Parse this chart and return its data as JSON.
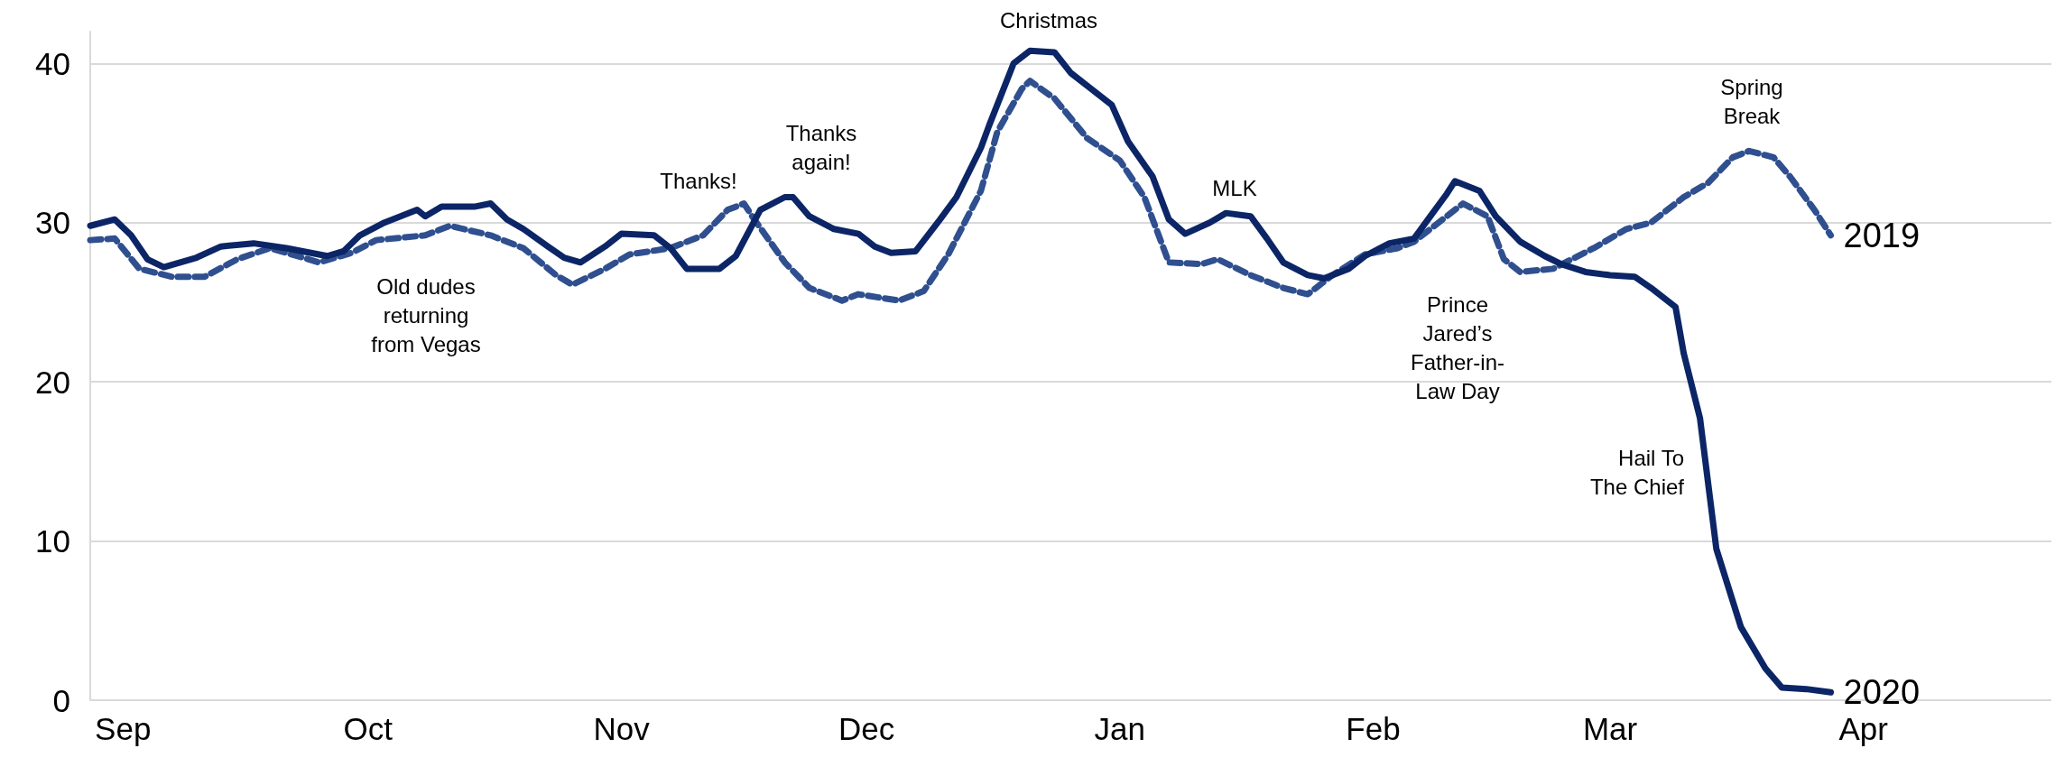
{
  "chart_data": {
    "type": "line",
    "xlim": [
      "2019-08-28",
      "2020-04-24"
    ],
    "xticks": [
      {
        "value": "2019-09-01",
        "label": "Sep"
      },
      {
        "value": "2019-10-01",
        "label": "Oct"
      },
      {
        "value": "2019-11-01",
        "label": "Nov"
      },
      {
        "value": "2019-12-01",
        "label": "Dec"
      },
      {
        "value": "2020-01-01",
        "label": "Jan"
      },
      {
        "value": "2020-02-01",
        "label": "Feb"
      },
      {
        "value": "2020-03-01",
        "label": "Mar"
      },
      {
        "value": "2020-04-01",
        "label": "Apr"
      }
    ],
    "ylim": [
      0,
      42
    ],
    "yticks": [
      0,
      10,
      20,
      30,
      40
    ],
    "grid": "y",
    "legend": false,
    "marker": "none",
    "series": [
      {
        "name": "2019",
        "color": "#2f4f8f",
        "line_style": "dashed",
        "x": [
          "2019-08-28",
          "2019-08-31",
          "2019-09-03",
          "2019-09-07",
          "2019-09-11",
          "2019-09-15",
          "2019-09-19",
          "2019-09-25",
          "2019-09-29",
          "2019-10-02",
          "2019-10-08",
          "2019-10-11",
          "2019-10-16",
          "2019-10-20",
          "2019-10-24",
          "2019-10-26",
          "2019-10-30",
          "2019-11-02",
          "2019-11-07",
          "2019-11-11",
          "2019-11-14",
          "2019-11-16",
          "2019-11-17",
          "2019-11-21",
          "2019-11-24",
          "2019-11-28",
          "2019-11-30",
          "2019-12-05",
          "2019-12-08",
          "2019-12-11",
          "2019-12-15",
          "2019-12-17",
          "2019-12-20",
          "2019-12-21",
          "2019-12-24",
          "2019-12-28",
          "2020-01-01",
          "2020-01-04",
          "2020-01-07",
          "2020-01-11",
          "2020-01-13",
          "2020-01-17",
          "2020-01-21",
          "2020-01-24",
          "2020-01-27",
          "2020-01-31",
          "2020-02-04",
          "2020-02-06",
          "2020-02-10",
          "2020-02-12",
          "2020-02-15",
          "2020-02-17",
          "2020-02-19",
          "2020-02-23",
          "2020-02-28",
          "2020-03-03",
          "2020-03-06",
          "2020-03-10",
          "2020-03-13",
          "2020-03-16",
          "2020-03-18",
          "2020-03-21",
          "2020-03-23",
          "2020-03-26",
          "2020-03-28"
        ],
        "values": [
          28.9,
          29.0,
          27.1,
          26.6,
          26.6,
          27.7,
          28.4,
          27.5,
          28.1,
          28.9,
          29.2,
          29.8,
          29.2,
          28.4,
          26.7,
          26.1,
          27.1,
          28.0,
          28.4,
          29.2,
          30.8,
          31.2,
          30.4,
          27.5,
          25.9,
          25.1,
          25.5,
          25.1,
          25.7,
          28.0,
          32.0,
          35.7,
          38.4,
          38.9,
          37.8,
          35.3,
          33.9,
          31.6,
          27.5,
          27.4,
          27.7,
          26.7,
          25.9,
          25.5,
          26.7,
          28.0,
          28.4,
          28.8,
          30.4,
          31.2,
          30.4,
          27.7,
          26.9,
          27.1,
          28.4,
          29.6,
          30.0,
          31.6,
          32.5,
          34.1,
          34.5,
          34.1,
          32.9,
          30.8,
          29.2
        ]
      },
      {
        "name": "2020",
        "color": "#0b2566",
        "line_style": "solid",
        "x": [
          "2019-08-28",
          "2019-08-31",
          "2019-09-02",
          "2019-09-04",
          "2019-09-06",
          "2019-09-10",
          "2019-09-13",
          "2019-09-17",
          "2019-09-21",
          "2019-09-26",
          "2019-09-28",
          "2019-09-30",
          "2019-10-03",
          "2019-10-07",
          "2019-10-08",
          "2019-10-10",
          "2019-10-14",
          "2019-10-16",
          "2019-10-18",
          "2019-10-20",
          "2019-10-23",
          "2019-10-25",
          "2019-10-27",
          "2019-10-30",
          "2019-11-01",
          "2019-11-05",
          "2019-11-07",
          "2019-11-09",
          "2019-11-13",
          "2019-11-15",
          "2019-11-18",
          "2019-11-21",
          "2019-11-22",
          "2019-11-24",
          "2019-11-27",
          "2019-11-30",
          "2019-12-02",
          "2019-12-04",
          "2019-12-07",
          "2019-12-10",
          "2019-12-12",
          "2019-12-15",
          "2019-12-16",
          "2019-12-19",
          "2019-12-21",
          "2019-12-24",
          "2019-12-26",
          "2019-12-28",
          "2019-12-31",
          "2020-01-02",
          "2020-01-05",
          "2020-01-07",
          "2020-01-09",
          "2020-01-12",
          "2020-01-14",
          "2020-01-17",
          "2020-01-19",
          "2020-01-21",
          "2020-01-24",
          "2020-01-26",
          "2020-01-29",
          "2020-01-31",
          "2020-02-03",
          "2020-02-06",
          "2020-02-08",
          "2020-02-10",
          "2020-02-11",
          "2020-02-14",
          "2020-02-16",
          "2020-02-19",
          "2020-02-22",
          "2020-02-24",
          "2020-02-27",
          "2020-03-01",
          "2020-03-04",
          "2020-03-06",
          "2020-03-09",
          "2020-03-10",
          "2020-03-12",
          "2020-03-14",
          "2020-03-17",
          "2020-03-20",
          "2020-03-22",
          "2020-03-25",
          "2020-03-28"
        ],
        "values": [
          29.8,
          30.2,
          29.2,
          27.7,
          27.2,
          27.8,
          28.5,
          28.7,
          28.4,
          27.9,
          28.2,
          29.2,
          30.0,
          30.8,
          30.4,
          31.0,
          31.0,
          31.2,
          30.2,
          29.6,
          28.5,
          27.8,
          27.5,
          28.5,
          29.3,
          29.2,
          28.4,
          27.1,
          27.1,
          27.9,
          30.8,
          31.6,
          31.6,
          30.4,
          29.6,
          29.3,
          28.5,
          28.1,
          28.2,
          30.2,
          31.6,
          34.7,
          36.1,
          40.0,
          40.8,
          40.7,
          39.4,
          38.6,
          37.4,
          35.1,
          32.9,
          30.2,
          29.3,
          30.0,
          30.6,
          30.4,
          29.0,
          27.5,
          26.7,
          26.5,
          27.1,
          27.9,
          28.7,
          29.0,
          30.4,
          31.8,
          32.6,
          32.0,
          30.4,
          28.8,
          27.9,
          27.4,
          26.9,
          26.7,
          26.6,
          25.9,
          24.7,
          21.8,
          17.7,
          9.5,
          4.6,
          2.0,
          0.8,
          0.7,
          0.5
        ]
      }
    ],
    "annotations": [
      "Old dudes\nreturning\nfrom Vegas",
      "Thanks!",
      "Thanks\nagain!",
      "Christmas",
      "MLK",
      "Prince\nJared’s\nFather-in-\nLaw Day",
      "Spring\nBreak",
      "Hail To\nThe Chief"
    ]
  }
}
